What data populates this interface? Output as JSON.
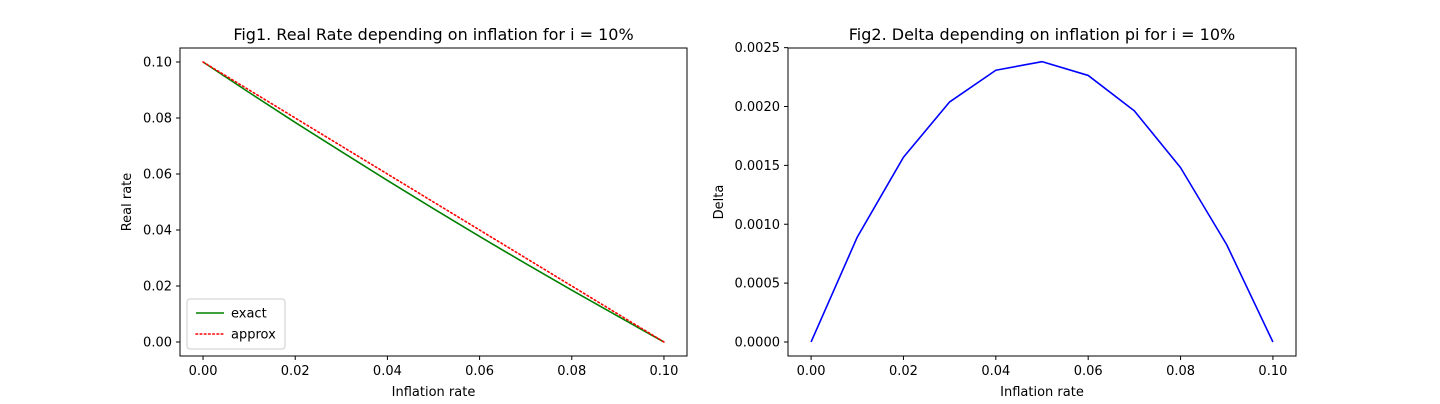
{
  "chart_data": [
    {
      "type": "line",
      "title": "Fig1. Real Rate depending on inflation for i = 10%",
      "xlabel": "Inflation rate",
      "ylabel": "Real rate",
      "xlim": [
        -0.005,
        0.105
      ],
      "ylim": [
        -0.005,
        0.105
      ],
      "xticks": [
        "0.00",
        "0.02",
        "0.04",
        "0.06",
        "0.08",
        "0.10"
      ],
      "yticks": [
        "0.00",
        "0.02",
        "0.04",
        "0.06",
        "0.08",
        "0.10"
      ],
      "grid": false,
      "legend_position": "lower-left",
      "interest_rate": 0.1,
      "series": [
        {
          "name": "exact",
          "color": "#008000",
          "style": "solid",
          "x": [
            0.0,
            0.01,
            0.02,
            0.03,
            0.04,
            0.05,
            0.06,
            0.07,
            0.08,
            0.09,
            0.1
          ],
          "values": [
            0.1,
            0.0891,
            0.0784,
            0.068,
            0.0577,
            0.0476,
            0.0377,
            0.028,
            0.0185,
            0.0092,
            0.0
          ]
        },
        {
          "name": "approx",
          "color": "#ff0000",
          "style": "dotted",
          "x": [
            0.0,
            0.01,
            0.02,
            0.03,
            0.04,
            0.05,
            0.06,
            0.07,
            0.08,
            0.09,
            0.1
          ],
          "values": [
            0.1,
            0.09,
            0.08,
            0.07,
            0.06,
            0.05,
            0.04,
            0.03,
            0.02,
            0.01,
            0.0
          ]
        }
      ]
    },
    {
      "type": "line",
      "title": "Fig2. Delta depending on inflation pi for i = 10%",
      "xlabel": "Inflation rate",
      "ylabel": "Delta",
      "xlim": [
        -0.005,
        0.105
      ],
      "ylim": [
        -0.000119,
        0.002497
      ],
      "xticks": [
        "0.00",
        "0.02",
        "0.04",
        "0.06",
        "0.08",
        "0.10"
      ],
      "yticks": [
        "0.0000",
        "0.0005",
        "0.0010",
        "0.0015",
        "0.0020",
        "0.0025"
      ],
      "grid": false,
      "series": [
        {
          "name": "",
          "color": "#0000ff",
          "style": "solid",
          "x": [
            0.0,
            0.01,
            0.02,
            0.03,
            0.04,
            0.05,
            0.06,
            0.07,
            0.08,
            0.09,
            0.1
          ],
          "values": [
            0.0,
            0.000891,
            0.001569,
            0.002039,
            0.002308,
            0.002381,
            0.002264,
            0.001963,
            0.001481,
            0.000826,
            0.0
          ]
        }
      ]
    }
  ]
}
